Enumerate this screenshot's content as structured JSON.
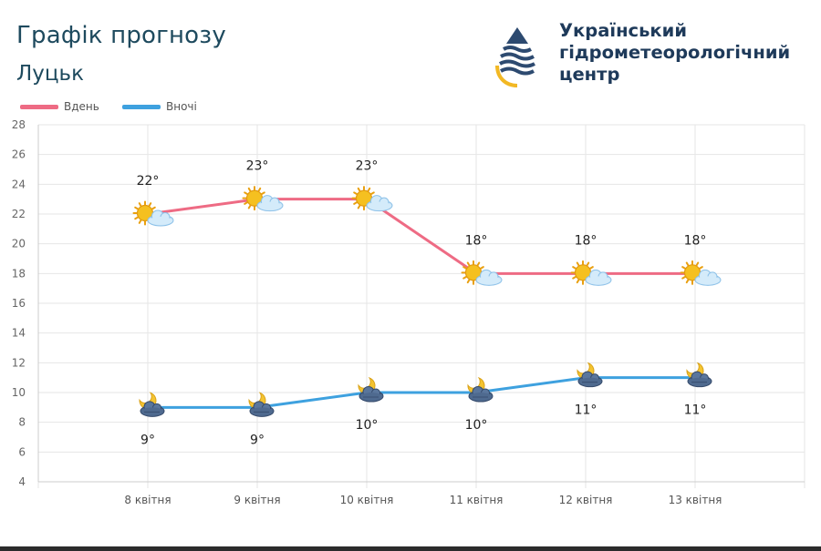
{
  "header": {
    "title": "Графік прогнозу",
    "city": "Луцьк"
  },
  "logo": {
    "org_lines": [
      "Український",
      "гідрометеорологічний",
      "центр"
    ],
    "icon": "water-drop-logo-icon"
  },
  "colors": {
    "day": "#ee6b84",
    "night": "#3ea1df",
    "title": "#1e4a5e",
    "grid": "#e6e6e6"
  },
  "chart_data": {
    "type": "line",
    "categories": [
      "8 квітня",
      "9 квітня",
      "10 квітня",
      "11 квітня",
      "12 квітня",
      "13 квітня"
    ],
    "series": [
      {
        "name": "Вдень",
        "values": [
          22,
          23,
          23,
          18,
          18,
          18
        ],
        "labels": [
          "22°",
          "23°",
          "23°",
          "18°",
          "18°",
          "18°"
        ],
        "icons": [
          "sun-cloud-icon",
          "sun-cloud-icon",
          "sun-cloud-icon",
          "sun-cloud-icon",
          "sun-cloud-icon",
          "sun-cloud-icon"
        ]
      },
      {
        "name": "Вночі",
        "values": [
          9,
          9,
          10,
          10,
          11,
          11
        ],
        "labels": [
          "9°",
          "9°",
          "10°",
          "10°",
          "11°",
          "11°"
        ],
        "icons": [
          "moon-cloud-icon",
          "moon-cloud-icon",
          "moon-cloud-icon",
          "moon-cloud-icon",
          "moon-cloud-icon",
          "moon-cloud-icon"
        ]
      }
    ],
    "ylim": [
      4,
      28
    ],
    "yticks": [
      4,
      6,
      8,
      10,
      12,
      14,
      16,
      18,
      20,
      22,
      24,
      26,
      28
    ],
    "grid": true,
    "legend": "top-left"
  }
}
